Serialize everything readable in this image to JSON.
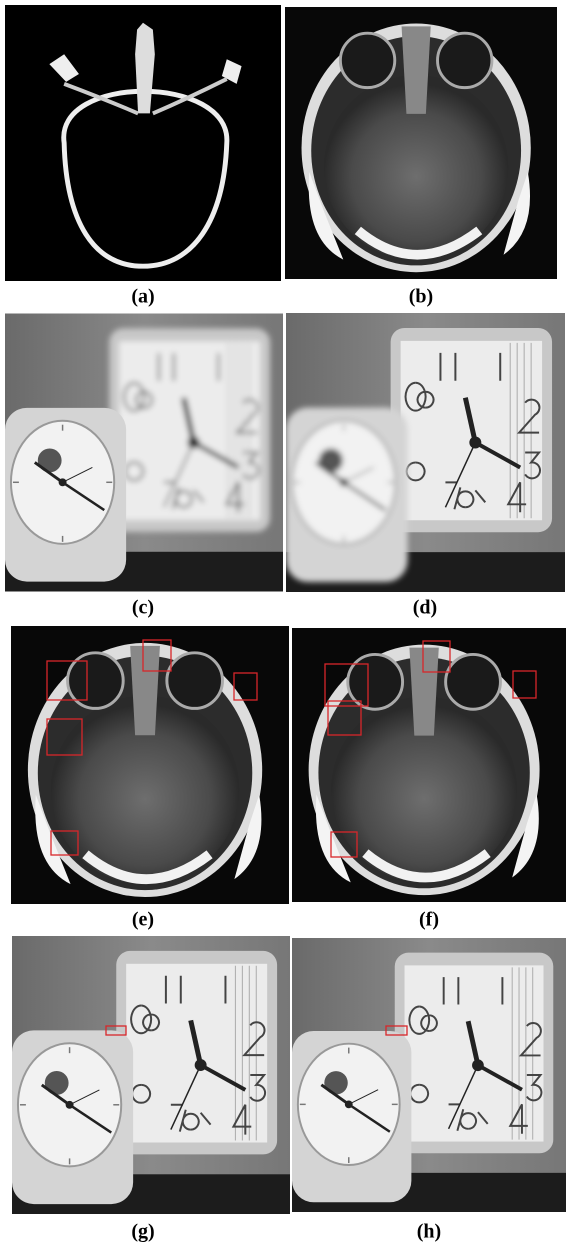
{
  "figure": {
    "panels": [
      {
        "label": "(a)"
      },
      {
        "label": "(b)"
      },
      {
        "label": "(c)"
      },
      {
        "label": "(d)"
      },
      {
        "label": "(e)"
      },
      {
        "label": "(f)"
      },
      {
        "label": "(g)"
      },
      {
        "label": "(h)"
      }
    ]
  }
}
